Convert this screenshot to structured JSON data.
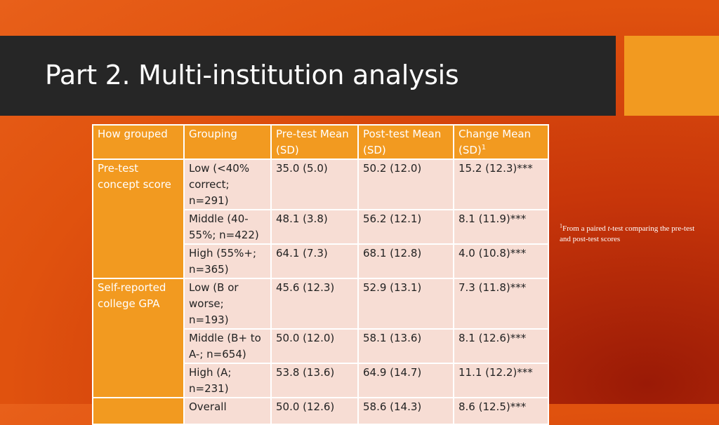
{
  "slide": {
    "title": "Part 2. Multi-institution analysis",
    "colors": {
      "title_bar": "#262626",
      "accent": "#f29a20",
      "cell": "#f7ddd4"
    }
  },
  "table": {
    "headers": [
      "How grouped",
      "Grouping",
      "Pre-test Mean (SD)",
      "Post-test Mean (SD)",
      "Change Mean (SD)"
    ],
    "change_footnote_marker": "1",
    "groups": [
      {
        "label": "Pre-test concept score"
      },
      {
        "label": "Self-reported college GPA"
      }
    ],
    "rows": [
      {
        "grouping": "Low (<40% correct; n=291)",
        "pre": "35.0 (5.0)",
        "post": "50.2 (12.0)",
        "change": "15.2 (12.3)***"
      },
      {
        "grouping": "Middle (40-55%; n=422)",
        "pre": "48.1 (3.8)",
        "post": "56.2 (12.1)",
        "change": "8.1 (11.9)***"
      },
      {
        "grouping": "High (55%+; n=365)",
        "pre": "64.1 (7.3)",
        "post": "68.1 (12.8)",
        "change": "4.0 (10.8)***"
      },
      {
        "grouping": "Low (B or worse; n=193)",
        "pre": "45.6 (12.3)",
        "post": "52.9 (13.1)",
        "change": "7.3 (11.8)***"
      },
      {
        "grouping": "Middle (B+ to A-; n=654)",
        "pre": "50.0 (12.0)",
        "post": "58.1 (13.6)",
        "change": "8.1 (12.6)***"
      },
      {
        "grouping": "High (A; n=231)",
        "pre": "53.8 (13.6)",
        "post": "64.9 (14.7)",
        "change": "11.1 (12.2)***"
      },
      {
        "grouping": "Overall",
        "pre": "50.0 (12.6)",
        "post": "58.6 (14.3)",
        "change": "8.6 (12.5)***"
      }
    ]
  },
  "footnote": {
    "marker": "1",
    "text_before": "From a paired ",
    "italic": "t",
    "text_after": "-test comparing the pre-test and post-test scores"
  }
}
